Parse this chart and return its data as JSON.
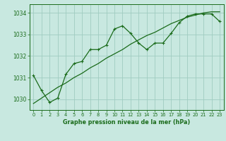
{
  "title": "Graphe pression niveau de la mer (hPa)",
  "bg_color": "#c8e8e0",
  "grid_color": "#a0ccc0",
  "line_color": "#1a6b1a",
  "x_values": [
    0,
    1,
    2,
    3,
    4,
    5,
    6,
    7,
    8,
    9,
    10,
    11,
    12,
    13,
    14,
    15,
    16,
    17,
    18,
    19,
    20,
    21,
    22,
    23
  ],
  "y_main": [
    1031.1,
    1030.4,
    1029.85,
    1030.05,
    1031.15,
    1031.65,
    1031.75,
    1032.3,
    1032.3,
    1032.5,
    1033.25,
    1033.4,
    1033.05,
    1032.6,
    1032.3,
    1032.6,
    1032.6,
    1033.05,
    1033.55,
    1033.85,
    1033.95,
    1033.95,
    1033.95,
    1033.6
  ],
  "y_trend": [
    1029.8,
    1030.05,
    1030.3,
    1030.55,
    1030.75,
    1031.0,
    1031.2,
    1031.45,
    1031.65,
    1031.9,
    1032.1,
    1032.3,
    1032.55,
    1032.75,
    1032.95,
    1033.1,
    1033.3,
    1033.5,
    1033.65,
    1033.8,
    1033.9,
    1034.0,
    1034.05,
    1034.05
  ],
  "xlim": [
    -0.5,
    23.5
  ],
  "ylim": [
    1029.5,
    1034.4
  ],
  "yticks": [
    1030,
    1031,
    1032,
    1033,
    1034
  ],
  "xticks": [
    0,
    1,
    2,
    3,
    4,
    5,
    6,
    7,
    8,
    9,
    10,
    11,
    12,
    13,
    14,
    15,
    16,
    17,
    18,
    19,
    20,
    21,
    22,
    23
  ]
}
